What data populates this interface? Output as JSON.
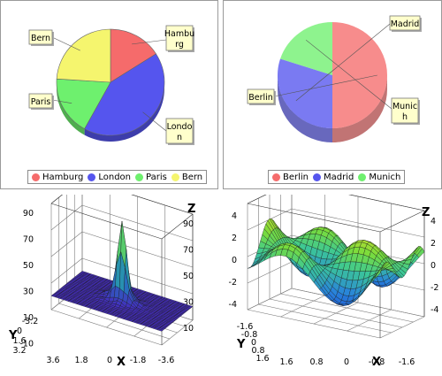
{
  "chart_data": [
    {
      "type": "pie",
      "style": "3d",
      "labels": [
        "Hamburg",
        "London",
        "Paris",
        "Bern"
      ],
      "slice_labels": [
        "Hambu\nrg",
        "Londo\nn",
        "Paris",
        "Bern"
      ],
      "values": [
        16,
        42,
        18,
        24
      ],
      "colors": [
        "#f56b6b",
        "#5555ee",
        "#6ef06e",
        "#f5f56e"
      ],
      "legend": [
        "Hamburg",
        "London",
        "Paris",
        "Bern"
      ],
      "legend_position": "bottom"
    },
    {
      "type": "pie",
      "style": "3d-transparent",
      "labels": [
        "Berlin",
        "Madrid",
        "Munich"
      ],
      "slice_labels": [
        "Berlin",
        "Madrid",
        "Munic\nh"
      ],
      "values": [
        50,
        30,
        20
      ],
      "colors": [
        "#f56b6b",
        "#5555ee",
        "#6ef06e"
      ],
      "legend": [
        "Berlin",
        "Madrid",
        "Munich"
      ],
      "legend_position": "bottom"
    },
    {
      "type": "surface3d",
      "description": "single central peak",
      "x_ticks": [
        "3.6",
        "1.8",
        "0",
        "-1.8",
        "-3.6"
      ],
      "y_ticks": [
        "-3.2",
        "0",
        "1.6",
        "3.2"
      ],
      "z_ticks_left": [
        "90",
        "70",
        "50",
        "30",
        "10",
        "-10"
      ],
      "z_ticks_right": [
        "90",
        "70",
        "50",
        "30",
        "10"
      ],
      "xlabel": "X",
      "ylabel": "Y",
      "zlabel": "Z",
      "zlim": [
        -10,
        90
      ]
    },
    {
      "type": "surface3d",
      "description": "saddle-shaped wave surface",
      "x_ticks": [
        "1.6",
        "0.8",
        "0",
        "-0.8",
        "-1.6"
      ],
      "y_ticks": [
        "-1.6",
        "-0.8",
        "0",
        "0.8",
        "1.6"
      ],
      "z_ticks_left": [
        "4",
        "2",
        "0",
        "-2",
        "-4"
      ],
      "z_ticks_right": [
        "4",
        "2",
        "0",
        "-2",
        "-4"
      ],
      "xlabel": "X",
      "ylabel": "Y",
      "zlabel": "Z",
      "zlim": [
        -4,
        4
      ]
    }
  ]
}
